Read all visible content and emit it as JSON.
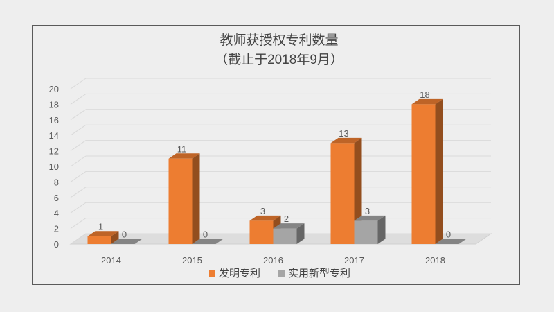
{
  "chart_data": {
    "type": "bar",
    "title": "教师获授权专利数量",
    "subtitle": "（截止于2018年9月）",
    "categories": [
      "2014",
      "2015",
      "2016",
      "2017",
      "2018"
    ],
    "series": [
      {
        "name": "发明专利",
        "values": [
          1,
          11,
          3,
          13,
          18
        ],
        "color": "#ed7d31"
      },
      {
        "name": "实用新型专利",
        "values": [
          0,
          0,
          2,
          3,
          0
        ],
        "color": "#a5a5a5"
      }
    ],
    "y_ticks": [
      "0",
      "2",
      "4",
      "6",
      "8",
      "10",
      "12",
      "14",
      "16",
      "18",
      "20"
    ],
    "ylim": [
      0,
      20
    ],
    "grid": true,
    "legend_position": "bottom",
    "style": "3d-column"
  }
}
